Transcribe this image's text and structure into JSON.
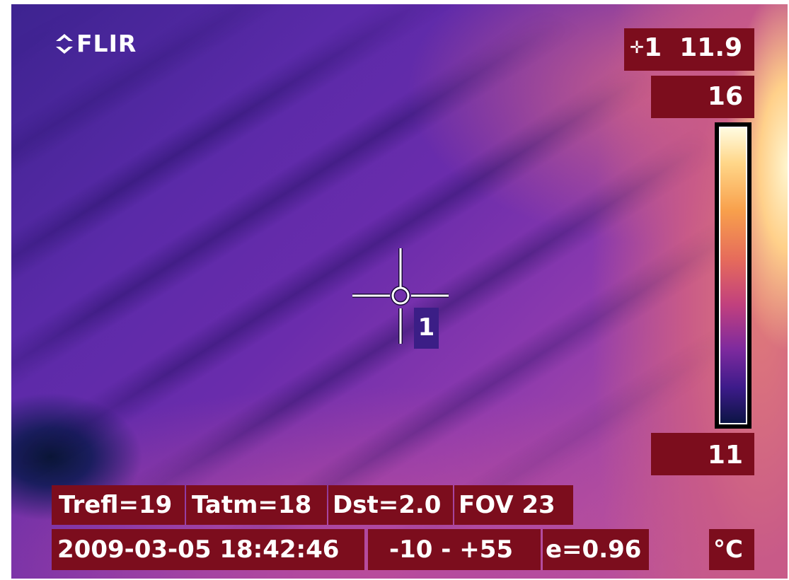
{
  "brand": "FLIR",
  "spot_readout": {
    "spot_number": "1",
    "value": "11.9"
  },
  "scale": {
    "max": "16",
    "min": "11",
    "unit": "°C"
  },
  "spot_marker": {
    "label": "1"
  },
  "params": {
    "trefl": "Trefl=19",
    "tatm": "Tatm=18",
    "dst": "Dst=2.0",
    "fov": "FOV 23"
  },
  "status": {
    "datetime": "2009-03-05 18:42:46",
    "range": "-10 -  +55",
    "emissivity": "e=0.96"
  },
  "colors": {
    "label_background": "#7c0d1d",
    "spot_tag_background": "#3b1e86",
    "palette": [
      "#0c1445",
      "#3d1b8a",
      "#7e2a9e",
      "#c1407e",
      "#e56a5c",
      "#f8a04c",
      "#ffd688",
      "#fffbe0"
    ]
  }
}
